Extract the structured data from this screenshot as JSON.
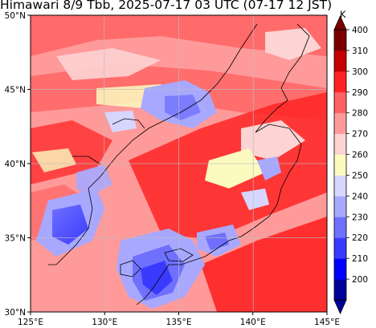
{
  "title": "Himawari 8/9 Tbb, 2025-07-17 03 UTC (07-17 12 JST)",
  "map": {
    "lon_range": [
      125,
      145
    ],
    "lat_range": [
      30,
      50
    ],
    "lon_ticks": [
      "125°E",
      "130°E",
      "135°E",
      "140°E",
      "145°E"
    ],
    "lat_ticks": [
      "30°N",
      "35°N",
      "40°N",
      "45°N",
      "50°N"
    ],
    "gridlines": true
  },
  "colorbar": {
    "unit": "K",
    "ticks": [
      "200",
      "210",
      "220",
      "230",
      "240",
      "250",
      "260",
      "270",
      "280",
      "290",
      "300",
      "310",
      "400"
    ],
    "bin_colors": [
      "#00009a",
      "#0000ff",
      "#3a3aff",
      "#7070ff",
      "#a8a8ff",
      "#d6d6ff",
      "#fbfbc0",
      "#fdd3d3",
      "#ff9a9a",
      "#ff6262",
      "#ff2424",
      "#c40000",
      "#7a0000"
    ]
  }
}
